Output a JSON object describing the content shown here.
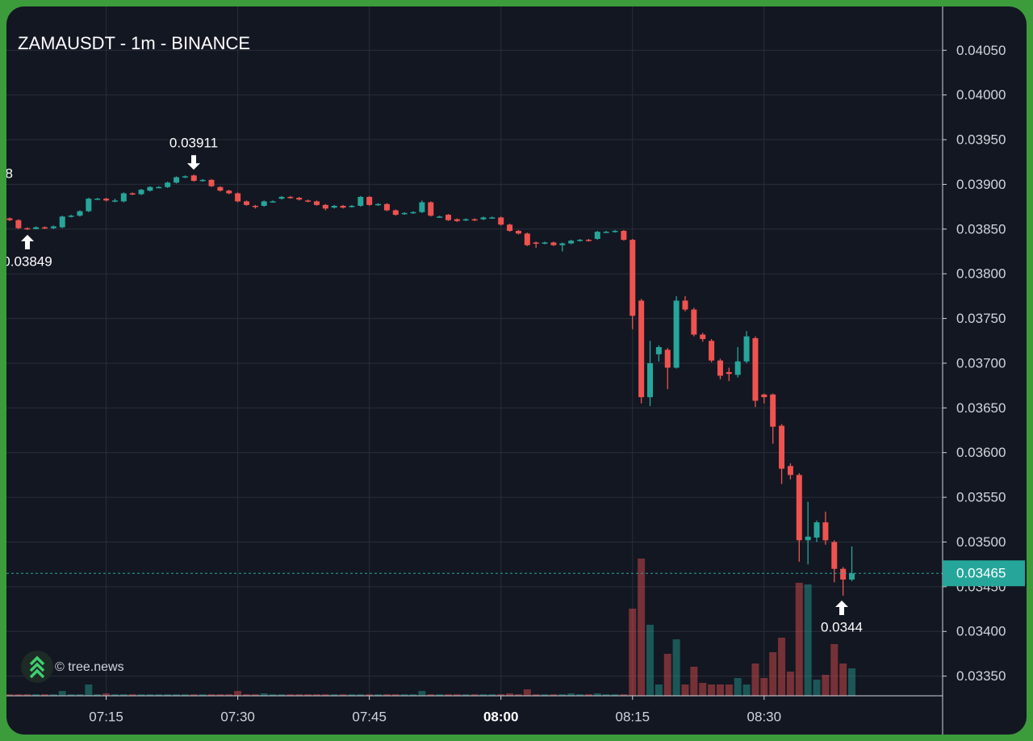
{
  "chart_data": {
    "type": "candlestick",
    "title": "ZAMAUSDT - 1m - BINANCE",
    "watermark": "© tree.news",
    "x": [
      "07:04",
      "07:05",
      "07:06",
      "07:07",
      "07:08",
      "07:09",
      "07:10",
      "07:11",
      "07:12",
      "07:13",
      "07:14",
      "07:15",
      "07:16",
      "07:17",
      "07:18",
      "07:19",
      "07:20",
      "07:21",
      "07:22",
      "07:23",
      "07:24",
      "07:25",
      "07:26",
      "07:27",
      "07:28",
      "07:29",
      "07:30",
      "07:31",
      "07:32",
      "07:33",
      "07:34",
      "07:35",
      "07:36",
      "07:37",
      "07:38",
      "07:39",
      "07:40",
      "07:41",
      "07:42",
      "07:43",
      "07:44",
      "07:45",
      "07:46",
      "07:47",
      "07:48",
      "07:49",
      "07:50",
      "07:51",
      "07:52",
      "07:53",
      "07:54",
      "07:55",
      "07:56",
      "07:57",
      "07:58",
      "07:59",
      "08:00",
      "08:01",
      "08:02",
      "08:03",
      "08:04",
      "08:05",
      "08:06",
      "08:07",
      "08:08",
      "08:09",
      "08:10",
      "08:11",
      "08:12",
      "08:13",
      "08:14",
      "08:15",
      "08:16",
      "08:17",
      "08:18",
      "08:19",
      "08:20",
      "08:21",
      "08:22",
      "08:23",
      "08:24",
      "08:25",
      "08:26",
      "08:27",
      "08:28",
      "08:29",
      "08:30",
      "08:31",
      "08:32",
      "08:33",
      "08:34",
      "08:35",
      "08:36",
      "08:37",
      "08:38",
      "08:39",
      "08:40"
    ],
    "open": [
      0.03862,
      0.0386,
      0.03851,
      0.0385,
      0.03852,
      0.03851,
      0.03852,
      0.03864,
      0.03865,
      0.0387,
      0.03884,
      0.03884,
      0.03881,
      0.03881,
      0.0389,
      0.03889,
      0.03893,
      0.03897,
      0.03897,
      0.03902,
      0.03908,
      0.0391,
      0.03904,
      0.03905,
      0.03897,
      0.03893,
      0.0389,
      0.03881,
      0.03876,
      0.03876,
      0.03881,
      0.03884,
      0.03886,
      0.03885,
      0.03882,
      0.03881,
      0.03877,
      0.03874,
      0.03876,
      0.03875,
      0.03876,
      0.03886,
      0.03877,
      0.03878,
      0.03871,
      0.03867,
      0.03868,
      0.03869,
      0.0388,
      0.03864,
      0.03866,
      0.03861,
      0.0386,
      0.03861,
      0.03861,
      0.03863,
      0.03863,
      0.03855,
      0.03848,
      0.03845,
      0.03835,
      0.03834,
      0.03835,
      0.03832,
      0.03834,
      0.03837,
      0.03838,
      0.03839,
      0.03847,
      0.03847,
      0.03848,
      0.03838,
      0.0377,
      0.03662,
      0.0371,
      0.03715,
      0.03695,
      0.0377,
      0.0376,
      0.03732,
      0.03725,
      0.03703,
      0.0369,
      0.03687,
      0.03702,
      0.03728,
      0.03665,
      0.03665,
      0.0363,
      0.03585,
      0.03575,
      0.03502,
      0.03505,
      0.03522,
      0.035,
      0.0347,
      0.03458
    ],
    "high": [
      0.03863,
      0.03861,
      0.03852,
      0.03853,
      0.03853,
      0.03854,
      0.03865,
      0.03866,
      0.03871,
      0.03885,
      0.03885,
      0.03885,
      0.03884,
      0.03891,
      0.03891,
      0.03895,
      0.03898,
      0.03898,
      0.03903,
      0.03909,
      0.0391,
      0.03911,
      0.03906,
      0.03906,
      0.03898,
      0.03894,
      0.03891,
      0.03882,
      0.03877,
      0.03882,
      0.03882,
      0.03887,
      0.03887,
      0.03886,
      0.03883,
      0.03882,
      0.03878,
      0.03877,
      0.03877,
      0.03877,
      0.03887,
      0.03887,
      0.03879,
      0.03879,
      0.03872,
      0.03869,
      0.0387,
      0.03882,
      0.03881,
      0.03865,
      0.03867,
      0.03862,
      0.03862,
      0.03862,
      0.03864,
      0.03864,
      0.03864,
      0.03856,
      0.03849,
      0.03846,
      0.03836,
      0.03836,
      0.03836,
      0.03835,
      0.03838,
      0.03839,
      0.03839,
      0.03848,
      0.03848,
      0.03849,
      0.03849,
      0.03839,
      0.03772,
      0.03725,
      0.0372,
      0.03717,
      0.03775,
      0.03775,
      0.03762,
      0.03734,
      0.03727,
      0.03705,
      0.03695,
      0.03718,
      0.03736,
      0.0373,
      0.03666,
      0.03666,
      0.03632,
      0.03588,
      0.03577,
      0.03545,
      0.03524,
      0.03534,
      0.03502,
      0.03472,
      0.03495
    ],
    "low": [
      0.03859,
      0.0385,
      0.03849,
      0.0385,
      0.0385,
      0.0385,
      0.03851,
      0.03863,
      0.03864,
      0.03869,
      0.03883,
      0.03881,
      0.0388,
      0.0388,
      0.03888,
      0.03888,
      0.03892,
      0.03896,
      0.03896,
      0.03901,
      0.03907,
      0.03903,
      0.03903,
      0.03897,
      0.03892,
      0.03889,
      0.0388,
      0.03876,
      0.03873,
      0.03875,
      0.0388,
      0.03883,
      0.03884,
      0.03882,
      0.0388,
      0.03876,
      0.03871,
      0.03873,
      0.03873,
      0.03874,
      0.03875,
      0.03876,
      0.03876,
      0.0387,
      0.03865,
      0.03866,
      0.03867,
      0.03868,
      0.03864,
      0.03863,
      0.03859,
      0.03858,
      0.03859,
      0.03859,
      0.0386,
      0.03862,
      0.03854,
      0.03847,
      0.03844,
      0.03831,
      0.03829,
      0.03833,
      0.03831,
      0.03825,
      0.03833,
      0.03836,
      0.03836,
      0.03838,
      0.03846,
      0.03846,
      0.03837,
      0.03738,
      0.03655,
      0.03652,
      0.03702,
      0.03671,
      0.03694,
      0.03758,
      0.0373,
      0.03724,
      0.03701,
      0.03682,
      0.0368,
      0.03684,
      0.037,
      0.03651,
      0.03655,
      0.0361,
      0.03565,
      0.0357,
      0.03478,
      0.03475,
      0.035,
      0.03497,
      0.03455,
      0.0344,
      0.03456
    ],
    "close": [
      0.0386,
      0.03851,
      0.0385,
      0.03852,
      0.03851,
      0.03853,
      0.03864,
      0.03865,
      0.0387,
      0.03884,
      0.03884,
      0.03882,
      0.03882,
      0.0389,
      0.03889,
      0.03894,
      0.03897,
      0.03897,
      0.03902,
      0.03908,
      0.03909,
      0.03904,
      0.03905,
      0.03898,
      0.03893,
      0.0389,
      0.03881,
      0.03877,
      0.03875,
      0.03881,
      0.03881,
      0.03886,
      0.03885,
      0.03883,
      0.03881,
      0.03877,
      0.03873,
      0.03876,
      0.03874,
      0.03876,
      0.03886,
      0.03877,
      0.03878,
      0.03871,
      0.03866,
      0.03868,
      0.03869,
      0.0388,
      0.03865,
      0.03864,
      0.0386,
      0.03859,
      0.03861,
      0.0386,
      0.03863,
      0.03863,
      0.03855,
      0.03848,
      0.03845,
      0.03832,
      0.03834,
      0.03835,
      0.03832,
      0.03834,
      0.03837,
      0.03838,
      0.03837,
      0.03847,
      0.03847,
      0.03848,
      0.03838,
      0.03753,
      0.03662,
      0.037,
      0.03718,
      0.03695,
      0.0377,
      0.0376,
      0.03732,
      0.03727,
      0.03703,
      0.03686,
      0.03688,
      0.03702,
      0.0373,
      0.03658,
      0.03662,
      0.03629,
      0.03582,
      0.03575,
      0.03502,
      0.03506,
      0.03522,
      0.03502,
      0.0347,
      0.03458,
      0.03465
    ],
    "volume": [
      2,
      2,
      2,
      2,
      2,
      2,
      6,
      2,
      2,
      14,
      2,
      3,
      2,
      2,
      2,
      2,
      2,
      2,
      2,
      2,
      2,
      2,
      2,
      2,
      2,
      2,
      6,
      2,
      2,
      3,
      2,
      2,
      2,
      2,
      2,
      2,
      2,
      2,
      2,
      2,
      2,
      2,
      2,
      2,
      2,
      2,
      2,
      6,
      2,
      2,
      2,
      2,
      2,
      2,
      2,
      2,
      2,
      3,
      2,
      8,
      2,
      2,
      2,
      2,
      3,
      2,
      2,
      3,
      2,
      2,
      2,
      108,
      170,
      88,
      14,
      52,
      70,
      14,
      36,
      16,
      14,
      14,
      14,
      22,
      14,
      40,
      22,
      54,
      72,
      30,
      140,
      138,
      20,
      26,
      64,
      40,
      34
    ],
    "up_color": "#26a69a",
    "down_color": "#ef5350",
    "ylim": [
      0.03328,
      0.04099
    ],
    "yticks": [
      {
        "value": 0.0335,
        "label": "0.03350"
      },
      {
        "value": 0.034,
        "label": "0.03400"
      },
      {
        "value": 0.0345,
        "label": "0.03450"
      },
      {
        "value": 0.035,
        "label": "0.03500"
      },
      {
        "value": 0.0355,
        "label": "0.03550"
      },
      {
        "value": 0.036,
        "label": "0.03600"
      },
      {
        "value": 0.0365,
        "label": "0.03650"
      },
      {
        "value": 0.037,
        "label": "0.03700"
      },
      {
        "value": 0.0375,
        "label": "0.03750"
      },
      {
        "value": 0.038,
        "label": "0.03800"
      },
      {
        "value": 0.0385,
        "label": "0.03850"
      },
      {
        "value": 0.039,
        "label": "0.03900"
      },
      {
        "value": 0.0395,
        "label": "0.03950"
      },
      {
        "value": 0.04,
        "label": "0.04000"
      },
      {
        "value": 0.0405,
        "label": "0.04050"
      }
    ],
    "xticks": [
      "07:15",
      "07:30",
      "07:45",
      "08:00",
      "08:15",
      "08:30"
    ],
    "xtick_bold": [
      false,
      false,
      false,
      true,
      false,
      false
    ],
    "grid": true,
    "last_price": 0.03465,
    "high_marker": 0.03911,
    "low_markers": [
      0.03849,
      0.0344
    ],
    "cut_label": "8"
  }
}
